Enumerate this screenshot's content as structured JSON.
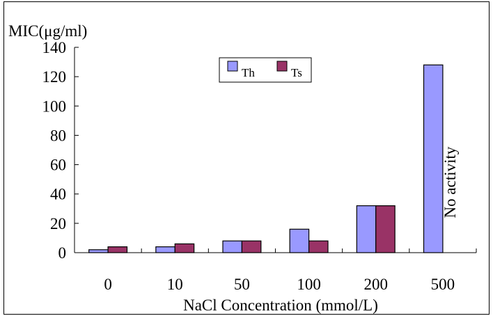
{
  "chart_data": {
    "type": "bar",
    "ylabel": "MIC(μg/ml)",
    "xlabel": "NaCl Concentration (mmol/L)",
    "categories": [
      "0",
      "10",
      "50",
      "100",
      "200",
      "500"
    ],
    "ylim": [
      0,
      140
    ],
    "yticks": [
      0,
      20,
      40,
      60,
      80,
      100,
      120,
      140
    ],
    "grid": false,
    "legend_position": "top-center",
    "series": [
      {
        "name": "Th",
        "color": "#9999ff",
        "values": [
          2,
          4,
          8,
          16,
          32,
          128
        ]
      },
      {
        "name": "Ts",
        "color": "#993366",
        "values": [
          4,
          6,
          8,
          8,
          32,
          null
        ]
      }
    ],
    "annotations": [
      {
        "text": "No activity",
        "category": "500"
      }
    ]
  }
}
